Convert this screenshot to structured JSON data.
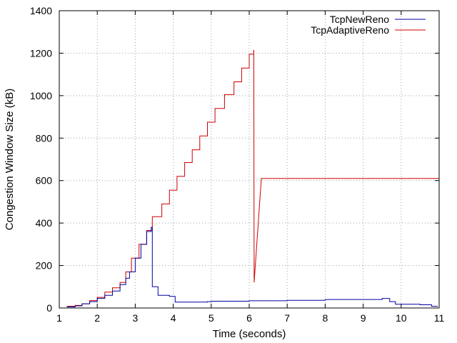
{
  "chart_data": {
    "type": "line",
    "title": "",
    "xlabel": "Time (seconds)",
    "ylabel": "Congestion Window Size (kB)",
    "xlim": [
      1,
      11
    ],
    "ylim": [
      0,
      1400
    ],
    "xticks": [
      1,
      2,
      3,
      4,
      5,
      6,
      7,
      8,
      9,
      10,
      11
    ],
    "yticks": [
      0,
      200,
      400,
      600,
      800,
      1000,
      1200,
      1400
    ],
    "grid": true,
    "legend_position": "top-right",
    "series": [
      {
        "name": "TcpNewReno",
        "color": "#0000a0",
        "step": true,
        "points": [
          [
            1.2,
            5
          ],
          [
            1.42,
            10
          ],
          [
            1.6,
            20
          ],
          [
            1.8,
            30
          ],
          [
            2.0,
            45
          ],
          [
            2.2,
            60
          ],
          [
            2.4,
            80
          ],
          [
            2.6,
            110
          ],
          [
            2.75,
            140
          ],
          [
            2.85,
            170
          ],
          [
            3.0,
            235
          ],
          [
            3.15,
            300
          ],
          [
            3.3,
            360
          ],
          [
            3.42,
            380
          ],
          [
            3.45,
            100
          ],
          [
            3.6,
            60
          ],
          [
            3.9,
            55
          ],
          [
            4.05,
            28
          ],
          [
            4.9,
            30
          ],
          [
            5.0,
            32
          ],
          [
            6.0,
            34
          ],
          [
            7.0,
            36
          ],
          [
            8.0,
            40
          ],
          [
            9.5,
            45
          ],
          [
            9.7,
            30
          ],
          [
            9.85,
            18
          ],
          [
            10.5,
            15
          ],
          [
            10.8,
            8
          ],
          [
            10.95,
            5
          ]
        ]
      },
      {
        "name": "TcpAdaptiveReno",
        "color": "#cc0000",
        "step": true,
        "points": [
          [
            1.2,
            8
          ],
          [
            1.42,
            12
          ],
          [
            1.6,
            20
          ],
          [
            1.8,
            35
          ],
          [
            2.0,
            50
          ],
          [
            2.2,
            75
          ],
          [
            2.4,
            95
          ],
          [
            2.6,
            120
          ],
          [
            2.75,
            170
          ],
          [
            2.9,
            235
          ],
          [
            3.1,
            300
          ],
          [
            3.3,
            365
          ],
          [
            3.45,
            430
          ],
          [
            3.7,
            490
          ],
          [
            3.9,
            555
          ],
          [
            4.1,
            620
          ],
          [
            4.3,
            685
          ],
          [
            4.5,
            745
          ],
          [
            4.7,
            810
          ],
          [
            4.9,
            875
          ],
          [
            5.1,
            940
          ],
          [
            5.35,
            1005
          ],
          [
            5.6,
            1065
          ],
          [
            5.8,
            1130
          ],
          [
            6.0,
            1195
          ],
          [
            6.12,
            1215
          ]
        ],
        "extra_line": [
          [
            6.12,
            1215
          ],
          [
            6.13,
            120
          ],
          [
            6.32,
            610
          ],
          [
            11.0,
            610
          ]
        ]
      }
    ]
  }
}
